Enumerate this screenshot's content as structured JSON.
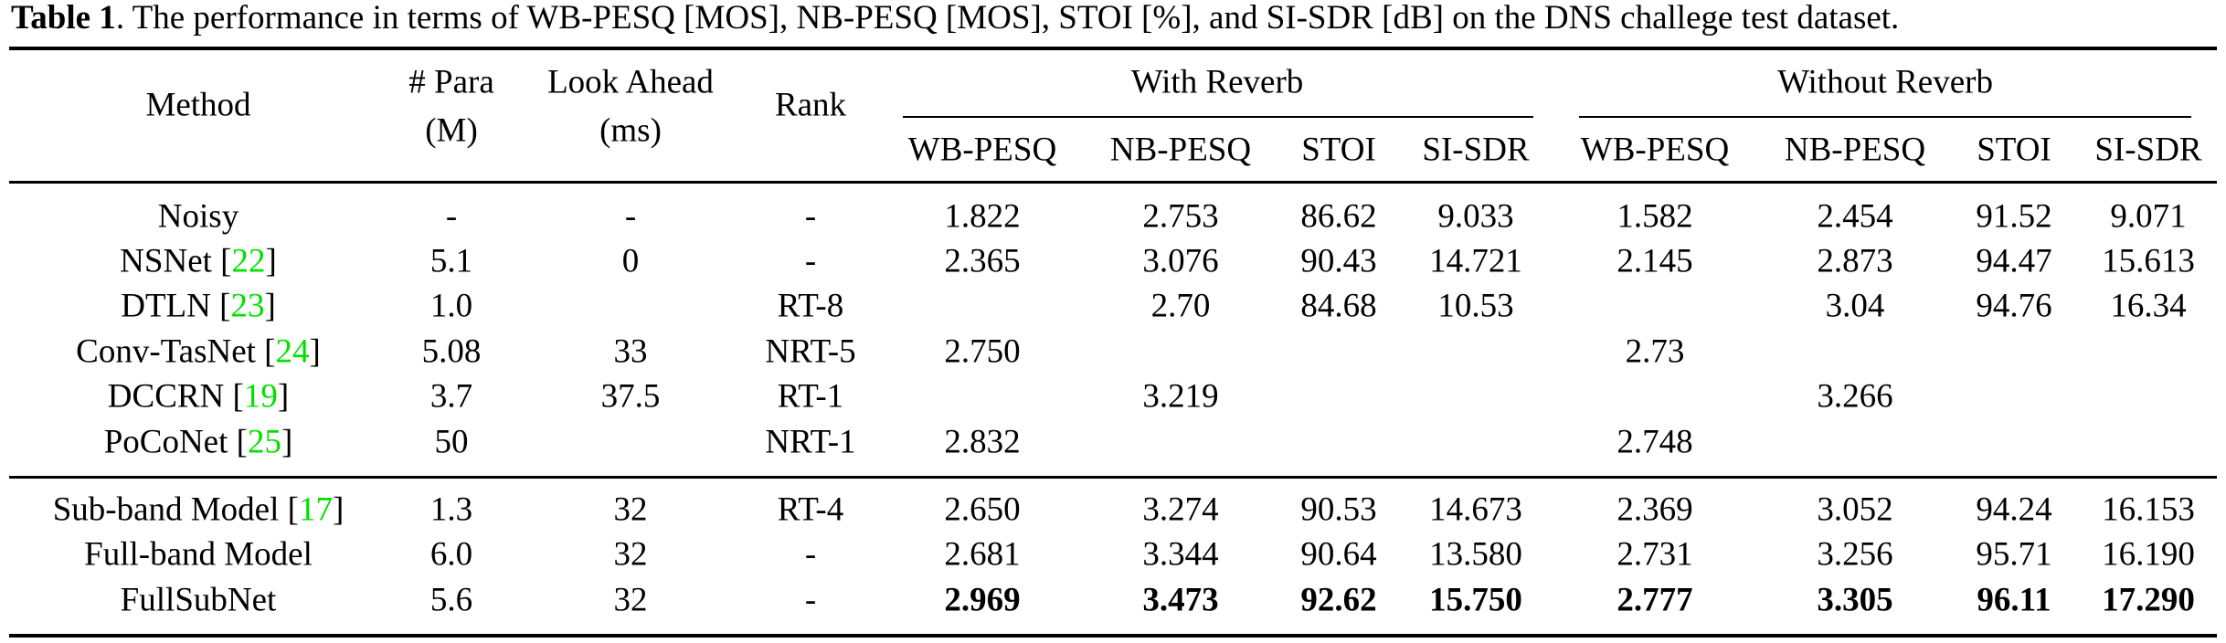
{
  "caption": {
    "label": "Table 1",
    "text": ". The performance in terms of WB-PESQ [MOS], NB-PESQ [MOS], STOI [%], and SI-SDR [dB] on the DNS challege test dataset."
  },
  "header": {
    "method": "Method",
    "para_line1": "# Para",
    "para_line2": "(M)",
    "lookahead_line1": "Look Ahead",
    "lookahead_line2": "(ms)",
    "rank": "Rank",
    "group_with": "With Reverb",
    "group_without": "Without Reverb",
    "metrics": [
      "WB-PESQ",
      "NB-PESQ",
      "STOI",
      "SI-SDR",
      "WB-PESQ",
      "NB-PESQ",
      "STOI",
      "SI-SDR"
    ]
  },
  "colors": {
    "citation": "#00e000"
  },
  "rows": [
    {
      "name": "Noisy",
      "ref": "",
      "para": "-",
      "lookahead": "-",
      "rank": "-",
      "values": [
        "1.822",
        "2.753",
        "86.62",
        "9.033",
        "1.582",
        "2.454",
        "91.52",
        "9.071"
      ],
      "bold": false
    },
    {
      "name": "NSNet",
      "ref": "22",
      "para": "5.1",
      "lookahead": "0",
      "rank": "-",
      "values": [
        "2.365",
        "3.076",
        "90.43",
        "14.721",
        "2.145",
        "2.873",
        "94.47",
        "15.613"
      ],
      "bold": false
    },
    {
      "name": "DTLN",
      "ref": "23",
      "para": "1.0",
      "lookahead": "",
      "rank": "RT-8",
      "values": [
        "",
        "2.70",
        "84.68",
        "10.53",
        "",
        "3.04",
        "94.76",
        "16.34"
      ],
      "bold": false
    },
    {
      "name": "Conv-TasNet",
      "ref": "24",
      "para": "5.08",
      "lookahead": "33",
      "rank": "NRT-5",
      "values": [
        "2.750",
        "",
        "",
        "",
        "2.73",
        "",
        "",
        ""
      ],
      "bold": false
    },
    {
      "name": "DCCRN",
      "ref": "19",
      "para": "3.7",
      "lookahead": "37.5",
      "rank": "RT-1",
      "values": [
        "",
        "3.219",
        "",
        "",
        "",
        "3.266",
        "",
        ""
      ],
      "bold": false
    },
    {
      "name": "PoCoNet",
      "ref": "25",
      "para": "50",
      "lookahead": "",
      "rank": "NRT-1",
      "values": [
        "2.832",
        "",
        "",
        "",
        "2.748",
        "",
        "",
        ""
      ],
      "bold": false
    },
    {
      "name": "Sub-band Model ",
      "ref": "17",
      "para": "1.3",
      "lookahead": "32",
      "rank": "RT-4",
      "values": [
        "2.650",
        "3.274",
        "90.53",
        "14.673",
        "2.369",
        "3.052",
        "94.24",
        "16.153"
      ],
      "bold": false
    },
    {
      "name": "Full-band Model",
      "ref": "",
      "para": "6.0",
      "lookahead": "32",
      "rank": "-",
      "values": [
        "2.681",
        "3.344",
        "90.64",
        "13.580",
        "2.731",
        "3.256",
        "95.71",
        "16.190"
      ],
      "bold": false
    },
    {
      "name": "FullSubNet",
      "ref": "",
      "para": "5.6",
      "lookahead": "32",
      "rank": "-",
      "values": [
        "2.969",
        "3.473",
        "92.62",
        "15.750",
        "2.777",
        "3.305",
        "96.11",
        "17.290"
      ],
      "bold": true
    }
  ]
}
